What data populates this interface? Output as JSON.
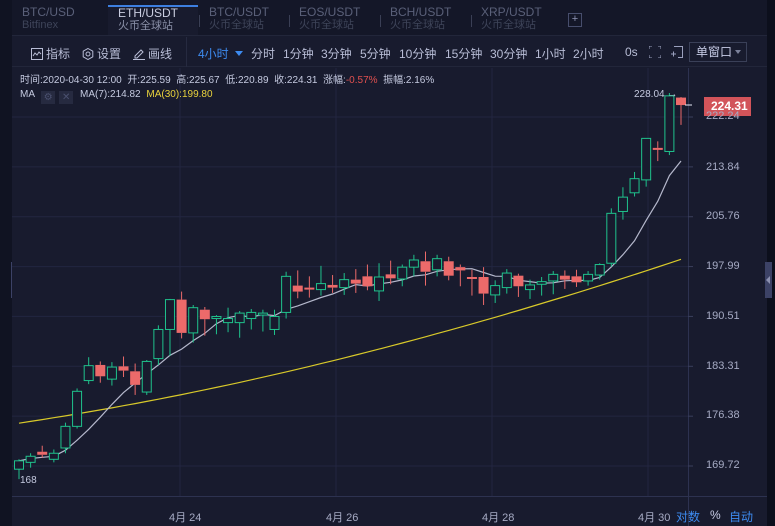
{
  "tabs": [
    {
      "symbol": "BTC/USD",
      "exchange": "Bitfinex",
      "active": false
    },
    {
      "symbol": "ETH/USDT",
      "exchange": "火币全球站",
      "active": true
    },
    {
      "symbol": "BTC/USDT",
      "exchange": "火币全球站",
      "active": false
    },
    {
      "symbol": "EOS/USDT",
      "exchange": "火币全球站",
      "active": false
    },
    {
      "symbol": "BCH/USDT",
      "exchange": "火币全球站",
      "active": false
    },
    {
      "symbol": "XRP/USDT",
      "exchange": "火币全球站",
      "active": false
    }
  ],
  "add_tab_label": "+",
  "toolbar": {
    "indicators": "指标",
    "settings": "设置",
    "draw": "画线",
    "selected_interval": "4小时",
    "intervals": [
      "分时",
      "1分钟",
      "3分钟",
      "5分钟",
      "10分钟",
      "15分钟",
      "30分钟",
      "1小时",
      "2小时"
    ],
    "timer": "0s",
    "window_mode": "单窗口"
  },
  "info": {
    "time_label": "时间:",
    "time": "2020-04-30 12:00",
    "open_label": "开:",
    "open": "225.59",
    "high_label": "高:",
    "high": "225.67",
    "low_label": "低:",
    "low": "220.89",
    "close_label": "收:",
    "close": "224.31",
    "change_label": "涨幅:",
    "change": "-0.57%",
    "amplitude_label": "振幅:",
    "amplitude": "2.16%"
  },
  "ma": {
    "label": "MA",
    "ma7_label": "MA(7):214.82",
    "ma30_label": "MA(30):199.80"
  },
  "colors": {
    "up": "#1fc28c",
    "down": "#ec6a6a",
    "ma7": "#b5b8cc",
    "ma30": "#d8c92a",
    "accent": "#3d8bf0",
    "last_price_bg": "#d2545a"
  },
  "chart": {
    "last_price": "224.31",
    "max_label": "228.04 →",
    "min_label": "168",
    "y_ticks": [
      "222.24",
      "213.84",
      "205.76",
      "197.99",
      "190.51",
      "183.31",
      "176.38",
      "169.72"
    ],
    "x_ticks": [
      "4月 24",
      "4月 26",
      "4月 28",
      "4月 30"
    ],
    "scale_log": "对数",
    "scale_pct": "%",
    "scale_auto": "自动"
  },
  "chart_data": {
    "type": "candlestick",
    "title": "ETH/USDT 4小时",
    "xlabel": "",
    "ylabel": "",
    "y_ticks": [
      222.24,
      213.84,
      205.76,
      197.99,
      190.51,
      183.31,
      176.38,
      169.72
    ],
    "x_ticks": [
      "4月 24",
      "4月 26",
      "4月 28",
      "4月 30"
    ],
    "ylim": [
      167,
      229
    ],
    "candles_pixel_note": "OHLC estimated from axis",
    "candles": [
      [
        169.3,
        170.6,
        168.0,
        170.4
      ],
      [
        170.2,
        171.4,
        169.5,
        171.0
      ],
      [
        171.6,
        172.4,
        170.8,
        171.2
      ],
      [
        170.6,
        171.9,
        170.2,
        171.4
      ],
      [
        172.1,
        175.5,
        171.4,
        175.0
      ],
      [
        175.0,
        180.2,
        174.7,
        179.8
      ],
      [
        181.3,
        184.6,
        180.8,
        183.4
      ],
      [
        183.5,
        184.0,
        181.0,
        181.9
      ],
      [
        181.5,
        183.9,
        180.6,
        183.2
      ],
      [
        183.3,
        184.7,
        181.8,
        182.7
      ],
      [
        182.6,
        183.7,
        179.3,
        180.7
      ],
      [
        179.7,
        184.2,
        179.3,
        184.0
      ],
      [
        184.4,
        189.2,
        183.5,
        188.6
      ],
      [
        188.6,
        193.1,
        184.8,
        193.0
      ],
      [
        193.0,
        194.2,
        187.3,
        188.1
      ],
      [
        188.1,
        192.2,
        186.7,
        191.8
      ],
      [
        191.5,
        191.9,
        187.7,
        190.1
      ],
      [
        190.2,
        190.7,
        187.9,
        190.5
      ],
      [
        189.6,
        191.8,
        188.2,
        190.2
      ],
      [
        189.6,
        191.3,
        187.4,
        191.0
      ],
      [
        190.2,
        191.6,
        188.6,
        191.1
      ],
      [
        191.0,
        191.5,
        188.3,
        191.0
      ],
      [
        188.6,
        191.5,
        187.8,
        190.5
      ],
      [
        191.1,
        197.2,
        190.2,
        196.5
      ],
      [
        195.1,
        197.4,
        193.2,
        194.2
      ],
      [
        194.8,
        196.5,
        193.3,
        194.5
      ],
      [
        194.5,
        198.1,
        193.6,
        195.4
      ],
      [
        195.2,
        196.7,
        194.0,
        194.8
      ],
      [
        194.8,
        197.0,
        193.7,
        196.0
      ],
      [
        196.0,
        197.6,
        194.0,
        195.4
      ],
      [
        196.5,
        198.3,
        194.4,
        195.0
      ],
      [
        194.3,
        198.5,
        192.8,
        196.4
      ],
      [
        196.8,
        198.9,
        195.3,
        196.2
      ],
      [
        196.1,
        198.3,
        195.0,
        197.9
      ],
      [
        197.9,
        199.8,
        196.5,
        199.0
      ],
      [
        198.8,
        200.3,
        195.1,
        197.2
      ],
      [
        197.5,
        199.8,
        196.5,
        199.2
      ],
      [
        198.8,
        199.5,
        195.9,
        196.6
      ],
      [
        197.9,
        198.3,
        195.0,
        197.4
      ],
      [
        196.4,
        197.5,
        193.6,
        196.3
      ],
      [
        196.4,
        197.9,
        192.2,
        193.9
      ],
      [
        193.7,
        195.9,
        192.5,
        195.1
      ],
      [
        194.8,
        197.6,
        193.9,
        197.0
      ],
      [
        196.6,
        196.9,
        193.4,
        195.0
      ],
      [
        194.5,
        196.0,
        193.1,
        195.2
      ],
      [
        195.3,
        196.4,
        193.6,
        195.7
      ],
      [
        195.8,
        197.3,
        193.8,
        196.8
      ],
      [
        196.6,
        197.4,
        194.6,
        196.0
      ],
      [
        196.5,
        197.5,
        194.9,
        195.6
      ],
      [
        195.8,
        197.3,
        195.1,
        196.8
      ],
      [
        196.7,
        198.5,
        196.0,
        198.3
      ],
      [
        198.5,
        207.1,
        198.0,
        206.3
      ],
      [
        206.6,
        210.5,
        205.3,
        208.9
      ],
      [
        209.6,
        213.0,
        209.0,
        211.9
      ],
      [
        211.7,
        218.5,
        210.6,
        218.6
      ],
      [
        217.0,
        218.1,
        214.8,
        216.9
      ],
      [
        216.4,
        226.4,
        215.8,
        225.9
      ],
      [
        225.6,
        225.7,
        220.9,
        224.3
      ]
    ],
    "series": [
      {
        "name": "MA(7)",
        "last": 214.82
      },
      {
        "name": "MA(30)",
        "last": 199.8
      }
    ]
  }
}
